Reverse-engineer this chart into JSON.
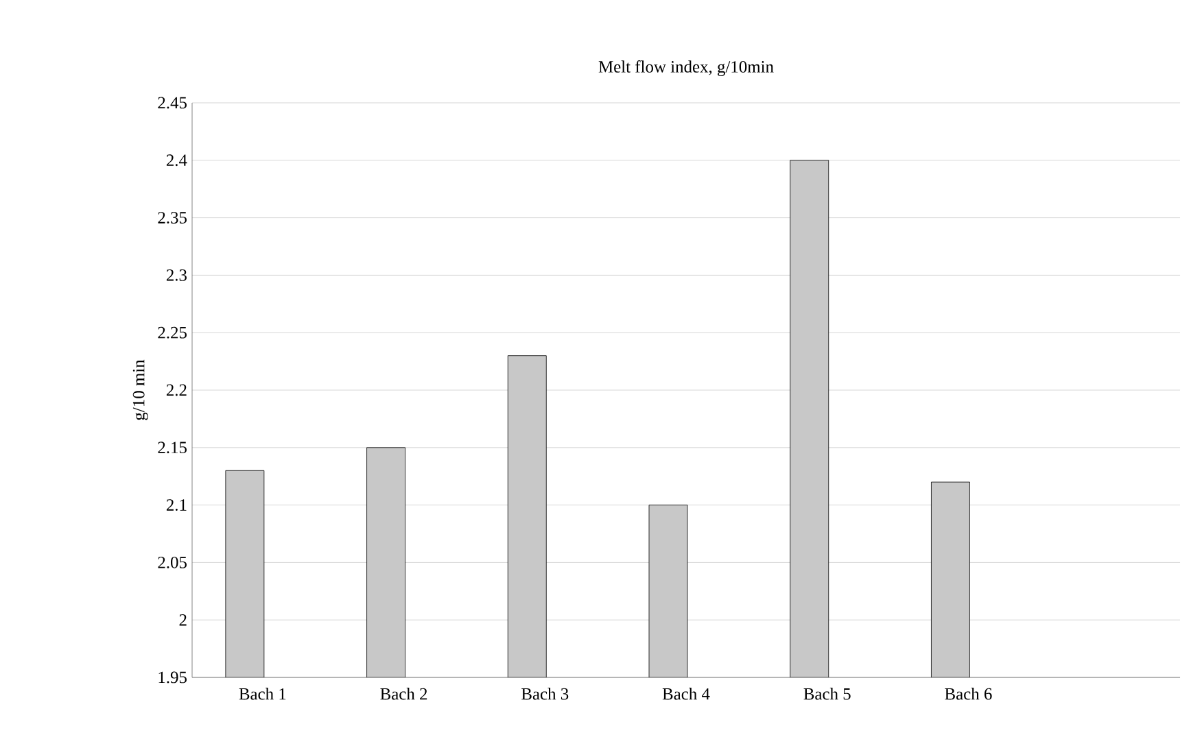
{
  "chart_data": {
    "type": "bar",
    "title": "Melt flow index, g/10min",
    "ylabel": "g/10 min",
    "categories": [
      "Bach 1",
      "Bach 2",
      "Bach 3",
      "Bach 4",
      "Bach 5",
      "Bach 6",
      null
    ],
    "values": [
      2.13,
      2.15,
      2.23,
      2.1,
      2.4,
      2.12,
      null
    ],
    "color": "#c8c8c8",
    "ylim": [
      1.95,
      2.45
    ],
    "yticks": [
      1.95,
      2,
      2.05,
      2.1,
      2.15,
      2.2,
      2.25,
      2.3,
      2.35,
      2.4,
      2.45
    ],
    "grid": "y"
  }
}
